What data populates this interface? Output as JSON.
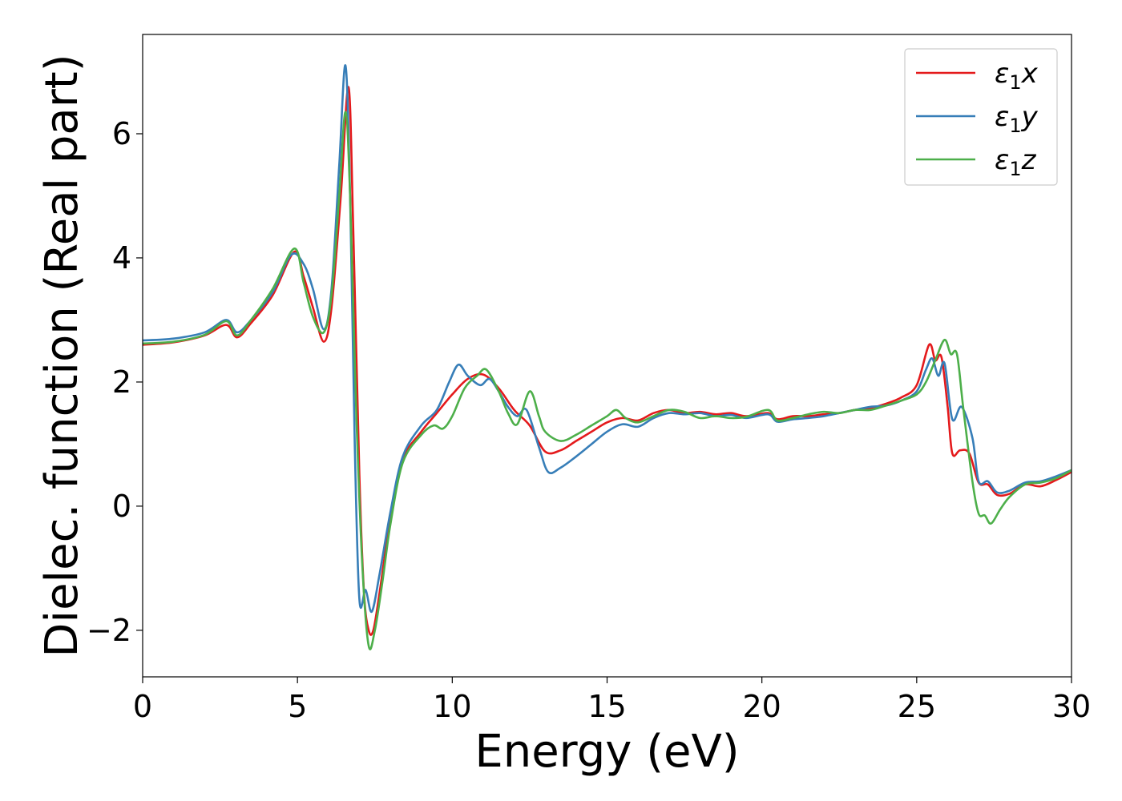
{
  "chart_data": {
    "type": "line",
    "title": "",
    "xlabel": "Energy (eV)",
    "ylabel": "Dielec. function (Real part)",
    "xlim": [
      0,
      30
    ],
    "ylim": [
      -2.75,
      7.6
    ],
    "xticks": [
      0,
      5,
      10,
      15,
      20,
      25,
      30
    ],
    "yticks": [
      -2,
      0,
      2,
      4,
      6
    ],
    "xtick_labels": [
      "0",
      "5",
      "10",
      "15",
      "20",
      "25",
      "30"
    ],
    "ytick_labels": [
      "−2",
      "0",
      "2",
      "4",
      "6"
    ],
    "grid": false,
    "legend_position": "top-right",
    "series": [
      {
        "name": "ε₁x",
        "legend": {
          "base": "ε",
          "sub": "1",
          "suffix": "x"
        },
        "color": "#e41a1c",
        "points": [
          [
            0,
            2.6
          ],
          [
            1,
            2.64
          ],
          [
            2,
            2.75
          ],
          [
            2.7,
            2.92
          ],
          [
            3.05,
            2.72
          ],
          [
            3.5,
            2.95
          ],
          [
            4.2,
            3.4
          ],
          [
            4.9,
            4.1
          ],
          [
            5.2,
            3.7
          ],
          [
            5.5,
            3.2
          ],
          [
            5.85,
            2.65
          ],
          [
            6.1,
            3.2
          ],
          [
            6.4,
            5.0
          ],
          [
            6.65,
            6.75
          ],
          [
            6.8,
            4.5
          ],
          [
            7.0,
            0.5
          ],
          [
            7.15,
            -1.4
          ],
          [
            7.3,
            -2.0
          ],
          [
            7.45,
            -2.0
          ],
          [
            7.65,
            -1.4
          ],
          [
            8.0,
            -0.2
          ],
          [
            8.4,
            0.75
          ],
          [
            9.0,
            1.2
          ],
          [
            9.5,
            1.5
          ],
          [
            10.0,
            1.8
          ],
          [
            10.5,
            2.05
          ],
          [
            11.0,
            2.12
          ],
          [
            11.5,
            1.9
          ],
          [
            12.0,
            1.55
          ],
          [
            12.5,
            1.3
          ],
          [
            13.0,
            0.88
          ],
          [
            13.5,
            0.9
          ],
          [
            14.0,
            1.05
          ],
          [
            14.5,
            1.2
          ],
          [
            15.0,
            1.35
          ],
          [
            15.5,
            1.42
          ],
          [
            16.0,
            1.38
          ],
          [
            16.5,
            1.5
          ],
          [
            17.0,
            1.55
          ],
          [
            17.5,
            1.5
          ],
          [
            18.0,
            1.52
          ],
          [
            18.5,
            1.48
          ],
          [
            19.0,
            1.5
          ],
          [
            19.5,
            1.45
          ],
          [
            20.2,
            1.5
          ],
          [
            20.5,
            1.4
          ],
          [
            21.0,
            1.45
          ],
          [
            21.5,
            1.45
          ],
          [
            22.0,
            1.48
          ],
          [
            22.5,
            1.5
          ],
          [
            23.0,
            1.55
          ],
          [
            23.5,
            1.58
          ],
          [
            24.0,
            1.65
          ],
          [
            24.5,
            1.75
          ],
          [
            25.0,
            1.95
          ],
          [
            25.4,
            2.6
          ],
          [
            25.6,
            2.35
          ],
          [
            25.8,
            2.4
          ],
          [
            26.0,
            1.6
          ],
          [
            26.15,
            0.85
          ],
          [
            26.4,
            0.9
          ],
          [
            26.7,
            0.85
          ],
          [
            27.0,
            0.38
          ],
          [
            27.3,
            0.35
          ],
          [
            27.6,
            0.18
          ],
          [
            28.0,
            0.2
          ],
          [
            28.5,
            0.35
          ],
          [
            29.0,
            0.32
          ],
          [
            29.5,
            0.42
          ],
          [
            30.0,
            0.55
          ]
        ]
      },
      {
        "name": "ε₁y",
        "legend": {
          "base": "ε",
          "sub": "1",
          "suffix": "y"
        },
        "color": "#377eb8",
        "points": [
          [
            0,
            2.67
          ],
          [
            1,
            2.7
          ],
          [
            2,
            2.8
          ],
          [
            2.7,
            3.0
          ],
          [
            3.05,
            2.8
          ],
          [
            3.5,
            3.0
          ],
          [
            4.2,
            3.45
          ],
          [
            4.8,
            4.05
          ],
          [
            5.2,
            3.9
          ],
          [
            5.5,
            3.5
          ],
          [
            5.85,
            2.85
          ],
          [
            6.1,
            3.5
          ],
          [
            6.35,
            5.5
          ],
          [
            6.55,
            7.1
          ],
          [
            6.7,
            5.0
          ],
          [
            6.85,
            1.0
          ],
          [
            7.0,
            -1.5
          ],
          [
            7.2,
            -1.35
          ],
          [
            7.4,
            -1.7
          ],
          [
            7.65,
            -1.1
          ],
          [
            8.0,
            -0.1
          ],
          [
            8.4,
            0.8
          ],
          [
            9.0,
            1.3
          ],
          [
            9.5,
            1.55
          ],
          [
            9.9,
            2.0
          ],
          [
            10.2,
            2.28
          ],
          [
            10.5,
            2.1
          ],
          [
            10.9,
            1.95
          ],
          [
            11.2,
            2.05
          ],
          [
            11.5,
            1.85
          ],
          [
            11.8,
            1.6
          ],
          [
            12.1,
            1.45
          ],
          [
            12.4,
            1.55
          ],
          [
            12.8,
            0.95
          ],
          [
            13.1,
            0.55
          ],
          [
            13.5,
            0.62
          ],
          [
            14.0,
            0.8
          ],
          [
            14.5,
            1.0
          ],
          [
            15.0,
            1.2
          ],
          [
            15.5,
            1.32
          ],
          [
            16.0,
            1.28
          ],
          [
            16.5,
            1.42
          ],
          [
            17.0,
            1.5
          ],
          [
            17.5,
            1.48
          ],
          [
            18.0,
            1.5
          ],
          [
            18.5,
            1.45
          ],
          [
            19.0,
            1.47
          ],
          [
            19.5,
            1.42
          ],
          [
            20.2,
            1.48
          ],
          [
            20.5,
            1.36
          ],
          [
            21.0,
            1.4
          ],
          [
            21.5,
            1.42
          ],
          [
            22.0,
            1.45
          ],
          [
            22.5,
            1.5
          ],
          [
            23.0,
            1.55
          ],
          [
            23.5,
            1.6
          ],
          [
            24.0,
            1.62
          ],
          [
            24.5,
            1.7
          ],
          [
            25.0,
            1.85
          ],
          [
            25.3,
            2.2
          ],
          [
            25.5,
            2.38
          ],
          [
            25.7,
            2.1
          ],
          [
            25.9,
            2.3
          ],
          [
            26.15,
            1.4
          ],
          [
            26.45,
            1.6
          ],
          [
            26.8,
            1.1
          ],
          [
            27.0,
            0.4
          ],
          [
            27.3,
            0.4
          ],
          [
            27.6,
            0.22
          ],
          [
            28.0,
            0.25
          ],
          [
            28.5,
            0.38
          ],
          [
            29.0,
            0.4
          ],
          [
            29.5,
            0.48
          ],
          [
            30.0,
            0.58
          ]
        ]
      },
      {
        "name": "ε₁z",
        "legend": {
          "base": "ε",
          "sub": "1",
          "suffix": "z"
        },
        "color": "#4daf4a",
        "points": [
          [
            0,
            2.62
          ],
          [
            1,
            2.65
          ],
          [
            2,
            2.76
          ],
          [
            2.7,
            2.98
          ],
          [
            3.05,
            2.75
          ],
          [
            3.5,
            3.0
          ],
          [
            4.2,
            3.5
          ],
          [
            4.9,
            4.15
          ],
          [
            5.2,
            3.6
          ],
          [
            5.5,
            3.05
          ],
          [
            5.85,
            2.8
          ],
          [
            6.1,
            3.4
          ],
          [
            6.35,
            5.0
          ],
          [
            6.55,
            6.35
          ],
          [
            6.7,
            5.0
          ],
          [
            6.9,
            1.5
          ],
          [
            7.1,
            -1.0
          ],
          [
            7.3,
            -2.25
          ],
          [
            7.5,
            -2.0
          ],
          [
            7.75,
            -1.2
          ],
          [
            8.0,
            -0.3
          ],
          [
            8.4,
            0.7
          ],
          [
            9.0,
            1.15
          ],
          [
            9.4,
            1.3
          ],
          [
            9.7,
            1.25
          ],
          [
            10.0,
            1.45
          ],
          [
            10.4,
            1.9
          ],
          [
            10.8,
            2.1
          ],
          [
            11.1,
            2.2
          ],
          [
            11.5,
            1.85
          ],
          [
            11.8,
            1.5
          ],
          [
            12.1,
            1.32
          ],
          [
            12.5,
            1.85
          ],
          [
            12.8,
            1.45
          ],
          [
            13.0,
            1.2
          ],
          [
            13.5,
            1.05
          ],
          [
            14.0,
            1.15
          ],
          [
            14.5,
            1.3
          ],
          [
            15.0,
            1.45
          ],
          [
            15.3,
            1.55
          ],
          [
            15.6,
            1.42
          ],
          [
            16.0,
            1.35
          ],
          [
            16.5,
            1.45
          ],
          [
            17.0,
            1.55
          ],
          [
            17.5,
            1.52
          ],
          [
            18.0,
            1.42
          ],
          [
            18.5,
            1.45
          ],
          [
            19.0,
            1.42
          ],
          [
            19.5,
            1.44
          ],
          [
            20.2,
            1.55
          ],
          [
            20.5,
            1.38
          ],
          [
            21.0,
            1.42
          ],
          [
            21.5,
            1.48
          ],
          [
            22.0,
            1.52
          ],
          [
            22.5,
            1.5
          ],
          [
            23.0,
            1.55
          ],
          [
            23.5,
            1.55
          ],
          [
            24.0,
            1.62
          ],
          [
            24.5,
            1.7
          ],
          [
            25.0,
            1.8
          ],
          [
            25.3,
            2.0
          ],
          [
            25.6,
            2.35
          ],
          [
            25.9,
            2.68
          ],
          [
            26.1,
            2.45
          ],
          [
            26.3,
            2.45
          ],
          [
            26.5,
            1.6
          ],
          [
            26.8,
            0.4
          ],
          [
            27.0,
            -0.12
          ],
          [
            27.2,
            -0.15
          ],
          [
            27.4,
            -0.28
          ],
          [
            27.7,
            -0.05
          ],
          [
            28.0,
            0.15
          ],
          [
            28.5,
            0.35
          ],
          [
            29.0,
            0.38
          ],
          [
            29.5,
            0.45
          ],
          [
            30.0,
            0.58
          ]
        ]
      }
    ]
  }
}
